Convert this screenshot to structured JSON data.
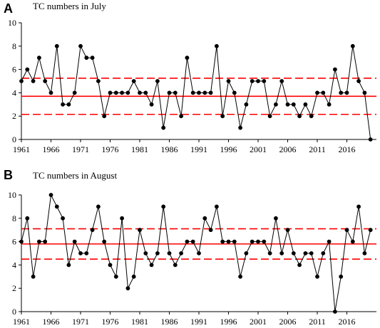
{
  "chart_data": [
    {
      "type": "line",
      "panel_label": "A",
      "title": "TC numbers in July",
      "xlabel": "",
      "ylabel": "",
      "x_start": 1961,
      "x_end": 2020,
      "xticks": [
        1961,
        1966,
        1971,
        1976,
        1981,
        1986,
        1991,
        1996,
        2001,
        2006,
        2011,
        2016
      ],
      "ylim": [
        0,
        10
      ],
      "yticks": [
        0,
        2,
        4,
        6,
        8,
        10
      ],
      "grid": false,
      "series": [
        {
          "values": [
            5,
            6,
            5,
            7,
            5,
            4,
            8,
            3,
            3,
            4,
            8,
            7,
            7,
            5,
            2,
            4,
            4,
            4,
            4,
            5,
            4,
            4,
            3,
            5,
            1,
            4,
            4,
            2,
            7,
            4,
            4,
            4,
            4,
            8,
            2,
            5,
            4,
            1,
            3,
            5,
            5,
            5,
            2,
            3,
            5,
            3,
            3,
            2,
            3,
            2,
            4,
            4,
            3,
            6,
            4,
            4,
            8,
            5,
            4,
            0
          ]
        }
      ],
      "reference_lines": {
        "mean": 3.7,
        "upper": 5.25,
        "lower": 2.15
      },
      "colors": {
        "series": "#000000",
        "reference": "#ff0000"
      }
    },
    {
      "type": "line",
      "panel_label": "B",
      "title": "TC numbers in August",
      "xlabel": "",
      "ylabel": "",
      "x_start": 1961,
      "x_end": 2020,
      "xticks": [
        1961,
        1966,
        1971,
        1976,
        1981,
        1986,
        1991,
        1996,
        2001,
        2006,
        2011,
        2016
      ],
      "ylim": [
        0,
        10
      ],
      "yticks": [
        0,
        2,
        4,
        6,
        8,
        10
      ],
      "grid": false,
      "series": [
        {
          "values": [
            6,
            8,
            3,
            6,
            6,
            10,
            9,
            8,
            4,
            6,
            5,
            5,
            7,
            9,
            6,
            4,
            3,
            8,
            2,
            3,
            7,
            5,
            4,
            5,
            9,
            5,
            4,
            5,
            6,
            6,
            5,
            8,
            7,
            9,
            6,
            6,
            6,
            3,
            5,
            6,
            6,
            6,
            5,
            8,
            5,
            7,
            5,
            4,
            5,
            5,
            3,
            5,
            6,
            0,
            3,
            7,
            6,
            9,
            5,
            7
          ]
        }
      ],
      "reference_lines": {
        "mean": 5.8,
        "upper": 7.1,
        "lower": 4.5
      },
      "colors": {
        "series": "#000000",
        "reference": "#ff0000"
      }
    }
  ]
}
